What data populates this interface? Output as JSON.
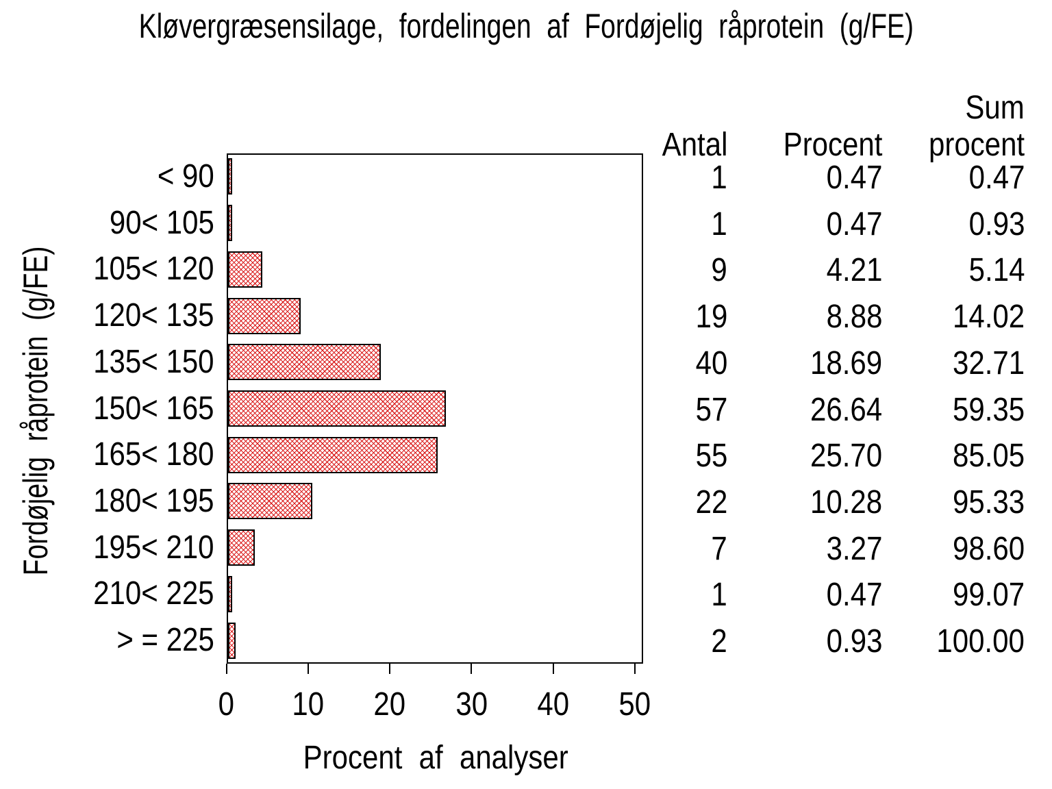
{
  "title": "Kløvergræsensilage, fordelingen af Fordøjelig råprotein (g/FE)",
  "chart_data": {
    "type": "bar",
    "orientation": "horizontal",
    "title": "Kløvergræsensilage, fordelingen af Fordøjelig råprotein (g/FE)",
    "xlabel": "Procent af analyser",
    "ylabel": "Fordøjelig råprotein (g/FE)",
    "xlim": [
      0,
      50
    ],
    "xticks": [
      "0",
      "10",
      "20",
      "30",
      "40",
      "50"
    ],
    "grid": false,
    "legend": "none",
    "bar_fill_style": "red diagonal crosshatch on white",
    "bar_hatch_color": "#da1c1c",
    "bar_border_color": "#000000",
    "categories": [
      "< 90",
      "90< 105",
      "105< 120",
      "120< 135",
      "135< 150",
      "150< 165",
      "165< 180",
      "180< 195",
      "195< 210",
      "210< 225",
      "> = 225"
    ],
    "values": [
      0.47,
      0.47,
      4.21,
      8.88,
      18.69,
      26.64,
      25.7,
      10.28,
      3.27,
      0.47,
      0.93
    ]
  },
  "table": {
    "header": {
      "antal": "Antal",
      "procent": "Procent",
      "sum_line1": "Sum",
      "sum_line2": "procent"
    },
    "rows": [
      {
        "label": "< 90",
        "antal": "1",
        "procent": "0.47",
        "sum": "0.47"
      },
      {
        "label": "90< 105",
        "antal": "1",
        "procent": "0.47",
        "sum": "0.93"
      },
      {
        "label": "105< 120",
        "antal": "9",
        "procent": "4.21",
        "sum": "5.14"
      },
      {
        "label": "120< 135",
        "antal": "19",
        "procent": "8.88",
        "sum": "14.02"
      },
      {
        "label": "135< 150",
        "antal": "40",
        "procent": "18.69",
        "sum": "32.71"
      },
      {
        "label": "150< 165",
        "antal": "57",
        "procent": "26.64",
        "sum": "59.35"
      },
      {
        "label": "165< 180",
        "antal": "55",
        "procent": "25.70",
        "sum": "85.05"
      },
      {
        "label": "180< 195",
        "antal": "22",
        "procent": "10.28",
        "sum": "95.33"
      },
      {
        "label": "195< 210",
        "antal": "7",
        "procent": "3.27",
        "sum": "98.60"
      },
      {
        "label": "210< 225",
        "antal": "1",
        "procent": "0.47",
        "sum": "99.07"
      },
      {
        "label": "> = 225",
        "antal": "2",
        "procent": "0.93",
        "sum": "100.00"
      }
    ]
  }
}
